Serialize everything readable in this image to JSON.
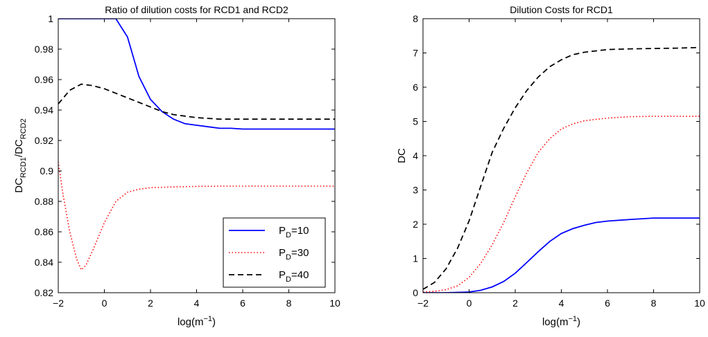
{
  "chart_data": [
    {
      "type": "line",
      "title": "Ratio of dilution costs for RCD1 and RCD2",
      "xlabel": "log(m",
      "xlabel_sup": "−1",
      "xlabel_end": ")",
      "ylabel": "DC",
      "ylabel_sub1": "RCD1",
      "ylabel_mid": "/DC",
      "ylabel_sub2": "RCD2",
      "xlim": [
        -2,
        10
      ],
      "ylim": [
        0.82,
        1.0
      ],
      "xticks": [
        "−2",
        "0",
        "2",
        "4",
        "6",
        "8",
        "10"
      ],
      "xtick_values": [
        -2,
        0,
        2,
        4,
        6,
        8,
        10
      ],
      "yticks": [
        "0.82",
        "0.84",
        "0.86",
        "0.88",
        "0.9",
        "0.92",
        "0.94",
        "0.96",
        "0.98",
        "1"
      ],
      "ytick_values": [
        0.82,
        0.84,
        0.86,
        0.88,
        0.9,
        0.92,
        0.94,
        0.96,
        0.98,
        1.0
      ],
      "legend": {
        "placement": "bottom-right"
      },
      "series": [
        {
          "name": "P",
          "name_sub": "D",
          "name_end": "=10",
          "color": "#0000ff",
          "style": "solid",
          "x": [
            -2,
            -1,
            0,
            0.5,
            1,
            1.5,
            2,
            2.5,
            3,
            3.5,
            4,
            4.5,
            5,
            5.5,
            6,
            7,
            8,
            9,
            10
          ],
          "y": [
            1.0,
            1.0,
            1.0,
            1.0,
            0.988,
            0.962,
            0.947,
            0.939,
            0.934,
            0.931,
            0.93,
            0.929,
            0.928,
            0.928,
            0.9275,
            0.9275,
            0.9275,
            0.9275,
            0.9275
          ]
        },
        {
          "name": "P",
          "name_sub": "D",
          "name_end": "=30",
          "color": "#ff0000",
          "style": "dotted",
          "x": [
            -2,
            -1.8,
            -1.5,
            -1.2,
            -1.0,
            -0.8,
            -0.5,
            0,
            0.5,
            1,
            1.5,
            2,
            3,
            4,
            5,
            6,
            7,
            8,
            9,
            10
          ],
          "y": [
            0.906,
            0.885,
            0.86,
            0.842,
            0.835,
            0.838,
            0.848,
            0.866,
            0.88,
            0.886,
            0.888,
            0.889,
            0.8895,
            0.8898,
            0.89,
            0.89,
            0.89,
            0.89,
            0.89,
            0.89
          ]
        },
        {
          "name": "P",
          "name_sub": "D",
          "name_end": "=40",
          "color": "#000000",
          "style": "dashed",
          "x": [
            -2,
            -1.5,
            -1,
            -0.5,
            0,
            0.5,
            1,
            1.5,
            2,
            2.5,
            3,
            3.5,
            4,
            5,
            6,
            7,
            8,
            9,
            10
          ],
          "y": [
            0.944,
            0.953,
            0.957,
            0.956,
            0.954,
            0.951,
            0.948,
            0.945,
            0.942,
            0.939,
            0.937,
            0.936,
            0.935,
            0.934,
            0.934,
            0.934,
            0.934,
            0.934,
            0.934
          ]
        }
      ]
    },
    {
      "type": "line",
      "title": "Dilution Costs for RCD1",
      "xlabel": "log(m",
      "xlabel_sup": "−1",
      "xlabel_end": ")",
      "ylabel": "DC",
      "xlim": [
        -2,
        10
      ],
      "ylim": [
        0,
        8
      ],
      "xticks": [
        "−2",
        "0",
        "2",
        "4",
        "6",
        "8",
        "10"
      ],
      "xtick_values": [
        -2,
        0,
        2,
        4,
        6,
        8,
        10
      ],
      "yticks": [
        "0",
        "1",
        "2",
        "3",
        "4",
        "5",
        "6",
        "7",
        "8"
      ],
      "ytick_values": [
        0,
        1,
        2,
        3,
        4,
        5,
        6,
        7,
        8
      ],
      "series": [
        {
          "color": "#0000ff",
          "style": "solid",
          "x": [
            -2,
            -1,
            0,
            0.5,
            1,
            1.5,
            2,
            2.5,
            3,
            3.5,
            4,
            4.5,
            5,
            5.5,
            6,
            7,
            8,
            9,
            10
          ],
          "y": [
            0,
            0,
            0.02,
            0.07,
            0.17,
            0.33,
            0.57,
            0.88,
            1.2,
            1.5,
            1.73,
            1.87,
            1.97,
            2.05,
            2.09,
            2.14,
            2.18,
            2.18,
            2.18
          ]
        },
        {
          "color": "#ff0000",
          "style": "dotted",
          "x": [
            -2,
            -1.5,
            -1,
            -0.5,
            0,
            0.5,
            1,
            1.5,
            2,
            2.5,
            3,
            3.5,
            4,
            4.5,
            5,
            6,
            7,
            8,
            9,
            10
          ],
          "y": [
            0.02,
            0.04,
            0.09,
            0.2,
            0.45,
            0.85,
            1.4,
            2.05,
            2.8,
            3.5,
            4.1,
            4.5,
            4.78,
            4.93,
            5.02,
            5.1,
            5.14,
            5.15,
            5.15,
            5.15
          ]
        },
        {
          "color": "#000000",
          "style": "dashed",
          "x": [
            -2,
            -1.5,
            -1,
            -0.5,
            0,
            0.5,
            1,
            1.5,
            2,
            2.5,
            3,
            3.5,
            4,
            4.5,
            5,
            6,
            7,
            8,
            9,
            10
          ],
          "y": [
            0.1,
            0.3,
            0.7,
            1.3,
            2.1,
            3.1,
            4.1,
            4.8,
            5.4,
            5.9,
            6.3,
            6.6,
            6.8,
            6.95,
            7.02,
            7.1,
            7.12,
            7.13,
            7.14,
            7.16
          ]
        }
      ]
    }
  ]
}
